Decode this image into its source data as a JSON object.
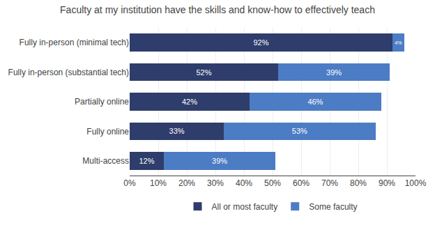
{
  "chart_data": {
    "type": "bar",
    "orientation": "horizontal",
    "stacked": true,
    "title": "Faculty at my institution have the skills and know-how to effectively teach",
    "categories": [
      "Multi-access",
      "Fully online",
      "Partially online",
      "Fully in-person (substantial tech)",
      "Fully in-person (minimal tech)"
    ],
    "series": [
      {
        "name": "All or most faculty",
        "color": "#2E3D6B",
        "values": [
          12,
          33,
          42,
          52,
          92
        ],
        "value_labels": [
          "12%",
          "33%",
          "42%",
          "52%",
          "92%"
        ]
      },
      {
        "name": "Some faculty",
        "color": "#4C7CC4",
        "values": [
          39,
          53,
          46,
          39,
          4
        ],
        "value_labels": [
          "39%",
          "53%",
          "46%",
          "39%",
          "4%"
        ]
      }
    ],
    "xlim": [
      0,
      100
    ],
    "xticks": [
      {
        "value": 0,
        "label": "0%"
      },
      {
        "value": 10,
        "label": "10%"
      },
      {
        "value": 20,
        "label": "20%"
      },
      {
        "value": 30,
        "label": "30%"
      },
      {
        "value": 40,
        "label": "40%"
      },
      {
        "value": 50,
        "label": "50%"
      },
      {
        "value": 60,
        "label": "60%"
      },
      {
        "value": 70,
        "label": "70%"
      },
      {
        "value": 80,
        "label": "80%"
      },
      {
        "value": 90,
        "label": "90%"
      },
      {
        "value": 100,
        "label": "100%"
      }
    ],
    "grid": true,
    "legend": "bottom",
    "data_labels": true
  }
}
